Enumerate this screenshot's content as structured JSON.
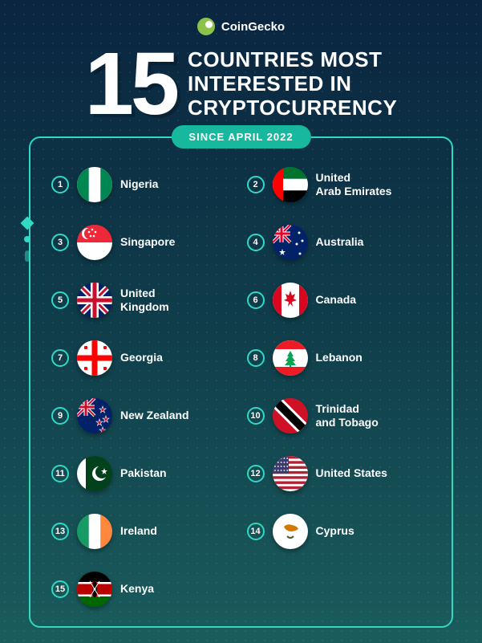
{
  "brand": {
    "name": "CoinGecko",
    "logo_color": "#8bc34a"
  },
  "headline": {
    "number": "15",
    "line1": "COUNTRIES MOST",
    "line2": "INTERESTED IN",
    "line3": "CRYPTOCURRENCY"
  },
  "badge_text": "SINCE APRIL 2022",
  "styling": {
    "accent_color": "#2fd9c4",
    "badge_bg": "#18b89e",
    "bg_gradient_top": "#0a2540",
    "bg_gradient_mid": "#0f3d4a",
    "bg_gradient_bottom": "#1a5c5c",
    "text_color": "#ffffff",
    "number_fontsize": 110,
    "title_fontsize": 26,
    "country_fontsize": 14,
    "rank_circle_size": 22,
    "flag_size": 44,
    "panel_border_radius": 14
  },
  "countries": [
    {
      "rank": "1",
      "name": "Nigeria",
      "flag": "nigeria"
    },
    {
      "rank": "2",
      "name": "United\nArab Emirates",
      "flag": "uae"
    },
    {
      "rank": "3",
      "name": "Singapore",
      "flag": "singapore"
    },
    {
      "rank": "4",
      "name": "Australia",
      "flag": "australia"
    },
    {
      "rank": "5",
      "name": "United\nKingdom",
      "flag": "uk"
    },
    {
      "rank": "6",
      "name": "Canada",
      "flag": "canada"
    },
    {
      "rank": "7",
      "name": "Georgia",
      "flag": "georgia"
    },
    {
      "rank": "8",
      "name": "Lebanon",
      "flag": "lebanon"
    },
    {
      "rank": "9",
      "name": "New Zealand",
      "flag": "newzealand"
    },
    {
      "rank": "10",
      "name": "Trinidad\nand Tobago",
      "flag": "trinidad"
    },
    {
      "rank": "11",
      "name": "Pakistan",
      "flag": "pakistan"
    },
    {
      "rank": "12",
      "name": "United States",
      "flag": "usa"
    },
    {
      "rank": "13",
      "name": "Ireland",
      "flag": "ireland"
    },
    {
      "rank": "14",
      "name": "Cyprus",
      "flag": "cyprus"
    },
    {
      "rank": "15",
      "name": "Kenya",
      "flag": "kenya"
    }
  ],
  "flag_colors": {
    "nigeria": {
      "side": "#008751",
      "center": "#ffffff"
    },
    "uae": {
      "red": "#ff0000",
      "green": "#00732f",
      "white": "#ffffff",
      "black": "#000000"
    },
    "singapore": {
      "top": "#ed2939",
      "bottom": "#ffffff",
      "moon": "#ffffff"
    },
    "australia": {
      "bg": "#012169",
      "cross": "#ffffff",
      "cross2": "#e4002b",
      "star": "#ffffff"
    },
    "uk": {
      "bg": "#012169",
      "white": "#ffffff",
      "red": "#c8102e"
    },
    "canada": {
      "side": "#d80621",
      "center": "#ffffff",
      "leaf": "#d80621"
    },
    "georgia": {
      "bg": "#ffffff",
      "cross": "#ff0000"
    },
    "lebanon": {
      "band": "#ed1c24",
      "center": "#ffffff",
      "tree": "#00a651"
    },
    "newzealand": {
      "bg": "#012169",
      "cross": "#ffffff",
      "cross2": "#c8102e",
      "star": "#c8102e",
      "star_outline": "#ffffff"
    },
    "trinidad": {
      "bg": "#ce1126",
      "white": "#ffffff",
      "black": "#000000"
    },
    "pakistan": {
      "bg": "#01411c",
      "white": "#ffffff"
    },
    "usa": {
      "red": "#b22234",
      "white": "#ffffff",
      "blue": "#3c3b6e"
    },
    "ireland": {
      "green": "#169b62",
      "white": "#ffffff",
      "orange": "#ff883e"
    },
    "cyprus": {
      "bg": "#ffffff",
      "shape": "#d57800",
      "leaves": "#4e5b31"
    },
    "kenya": {
      "black": "#000000",
      "red": "#bb0000",
      "green": "#006600",
      "white": "#ffffff"
    }
  }
}
